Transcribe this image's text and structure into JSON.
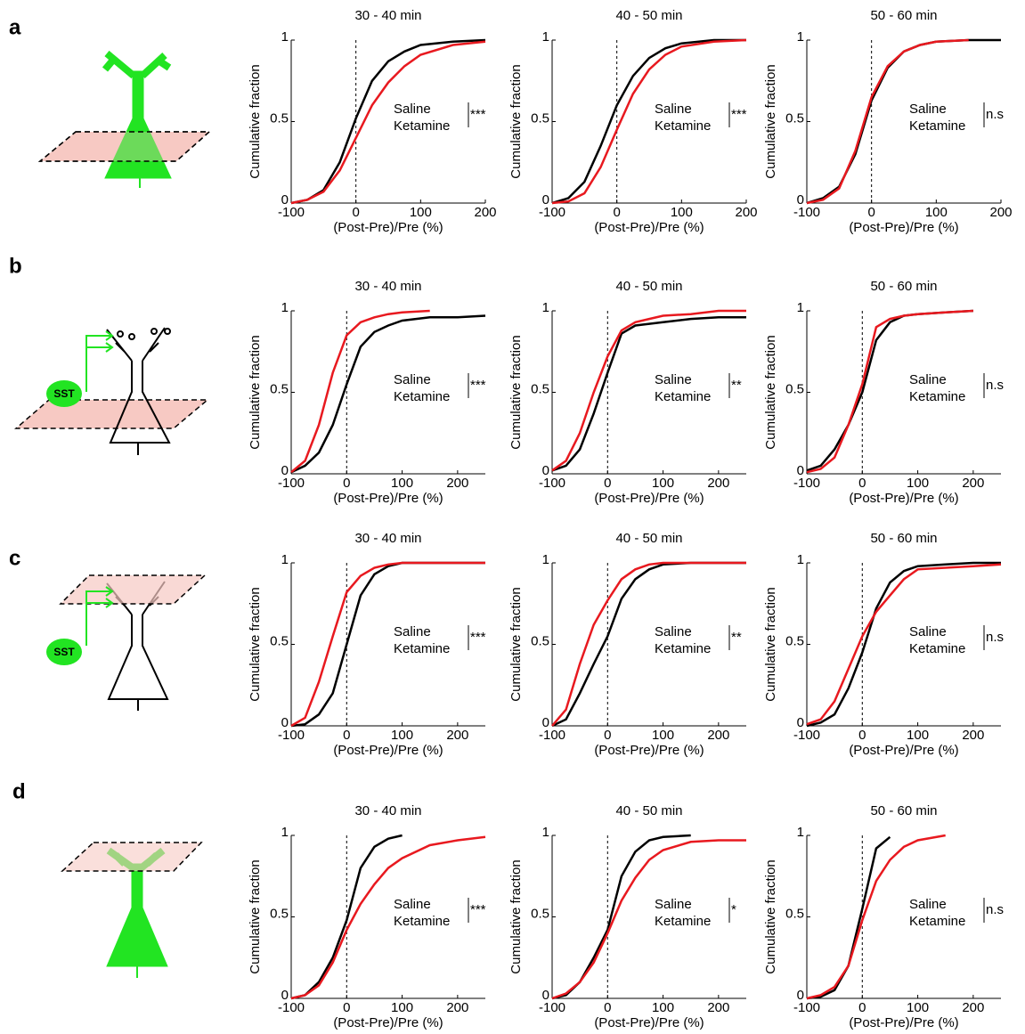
{
  "figure": {
    "panel_labels": [
      "a",
      "b",
      "c",
      "d"
    ],
    "sst_labels": [
      "SST",
      "SST"
    ]
  },
  "chart_data": [
    {
      "type": "line",
      "title": "30 - 40 min",
      "xlabel": "(Post-Pre)/Pre (%)",
      "ylabel": "Cumulative fraction",
      "annotation": "***",
      "vline": 0,
      "x": [
        -100,
        -75,
        -50,
        -25,
        0,
        25,
        50,
        75,
        100,
        150,
        200,
        250
      ],
      "series": [
        {
          "name": "Saline",
          "color": "#000000",
          "values": [
            0,
            0.02,
            0.08,
            0.25,
            0.52,
            0.75,
            0.87,
            0.93,
            0.97,
            0.99,
            1,
            null
          ]
        },
        {
          "name": "Ketamine",
          "color": "#e8191f",
          "values": [
            0,
            0.02,
            0.07,
            0.2,
            0.4,
            0.6,
            0.74,
            0.84,
            0.91,
            0.97,
            0.99,
            null
          ]
        }
      ],
      "xlim": [
        -100,
        200
      ],
      "ylim": [
        0,
        1
      ],
      "xticks": [
        -100,
        0,
        100,
        200
      ],
      "yticks": [
        0,
        0.5,
        1
      ]
    },
    {
      "type": "line",
      "title": "40 - 50 min",
      "xlabel": "(Post-Pre)/Pre (%)",
      "ylabel": "Cumulative fraction",
      "annotation": "***",
      "vline": 0,
      "x": [
        -100,
        -75,
        -50,
        -25,
        0,
        25,
        50,
        75,
        100,
        150,
        200,
        250
      ],
      "series": [
        {
          "name": "Saline",
          "color": "#000000",
          "values": [
            0,
            0.03,
            0.13,
            0.35,
            0.6,
            0.78,
            0.89,
            0.95,
            0.98,
            1,
            1,
            null
          ]
        },
        {
          "name": "Ketamine",
          "color": "#e8191f",
          "values": [
            0,
            0.01,
            0.06,
            0.22,
            0.45,
            0.67,
            0.82,
            0.91,
            0.96,
            0.99,
            1,
            null
          ]
        }
      ],
      "xlim": [
        -100,
        200
      ],
      "ylim": [
        0,
        1
      ],
      "xticks": [
        -100,
        0,
        100,
        200
      ],
      "yticks": [
        0,
        0.5,
        1
      ]
    },
    {
      "type": "line",
      "title": "50 - 60 min",
      "xlabel": "(Post-Pre)/Pre (%)",
      "ylabel": "Cumulative fraction",
      "annotation": "n.s",
      "vline": 0,
      "x": [
        -100,
        -75,
        -50,
        -25,
        0,
        25,
        50,
        75,
        100,
        150,
        200,
        250
      ],
      "series": [
        {
          "name": "Saline",
          "color": "#000000",
          "values": [
            0,
            0.03,
            0.1,
            0.3,
            0.63,
            0.83,
            0.93,
            0.97,
            0.99,
            1,
            1,
            null
          ]
        },
        {
          "name": "Ketamine",
          "color": "#e8191f",
          "values": [
            0,
            0.02,
            0.09,
            0.32,
            0.65,
            0.84,
            0.93,
            0.97,
            0.99,
            1,
            null,
            null
          ]
        }
      ],
      "xlim": [
        -100,
        200
      ],
      "ylim": [
        0,
        1
      ],
      "xticks": [
        -100,
        0,
        100,
        200
      ],
      "yticks": [
        0,
        0.5,
        1
      ]
    },
    {
      "type": "line",
      "title": "30 - 40 min",
      "xlabel": "(Post-Pre)/Pre (%)",
      "ylabel": "Cumulative fraction",
      "annotation": "***",
      "vline": 0,
      "x": [
        -100,
        -75,
        -50,
        -25,
        0,
        25,
        50,
        75,
        100,
        150,
        200,
        250
      ],
      "series": [
        {
          "name": "Saline",
          "color": "#000000",
          "values": [
            0.01,
            0.05,
            0.13,
            0.3,
            0.55,
            0.78,
            0.87,
            0.91,
            0.94,
            0.96,
            0.96,
            0.97
          ]
        },
        {
          "name": "Ketamine",
          "color": "#e8191f",
          "values": [
            0.01,
            0.08,
            0.3,
            0.62,
            0.85,
            0.93,
            0.96,
            0.98,
            0.99,
            1,
            null,
            null
          ]
        }
      ],
      "xlim": [
        -100,
        250
      ],
      "ylim": [
        0,
        1
      ],
      "xticks": [
        -100,
        0,
        100,
        200
      ],
      "yticks": [
        0,
        0.5,
        1
      ]
    },
    {
      "type": "line",
      "title": "40 - 50 min",
      "xlabel": "(Post-Pre)/Pre (%)",
      "ylabel": "Cumulative fraction",
      "annotation": "**",
      "vline": 0,
      "x": [
        -100,
        -75,
        -50,
        -25,
        0,
        25,
        50,
        75,
        100,
        150,
        200,
        250
      ],
      "series": [
        {
          "name": "Saline",
          "color": "#000000",
          "values": [
            0.02,
            0.05,
            0.15,
            0.37,
            0.62,
            0.86,
            0.91,
            0.92,
            0.93,
            0.95,
            0.96,
            0.96
          ]
        },
        {
          "name": "Ketamine",
          "color": "#e8191f",
          "values": [
            0.02,
            0.08,
            0.25,
            0.5,
            0.72,
            0.88,
            0.93,
            0.95,
            0.97,
            0.98,
            1,
            1
          ]
        }
      ],
      "xlim": [
        -100,
        250
      ],
      "ylim": [
        0,
        1
      ],
      "xticks": [
        -100,
        0,
        100,
        200
      ],
      "yticks": [
        0,
        0.5,
        1
      ]
    },
    {
      "type": "line",
      "title": "50 - 60 min",
      "xlabel": "(Post-Pre)/Pre (%)",
      "ylabel": "Cumulative fraction",
      "annotation": "n.s",
      "vline": 0,
      "x": [
        -100,
        -75,
        -50,
        -25,
        0,
        25,
        50,
        75,
        100,
        150,
        200,
        250
      ],
      "series": [
        {
          "name": "Saline",
          "color": "#000000",
          "values": [
            0.02,
            0.05,
            0.15,
            0.3,
            0.5,
            0.82,
            0.93,
            0.97,
            0.98,
            0.99,
            1,
            null
          ]
        },
        {
          "name": "Ketamine",
          "color": "#e8191f",
          "values": [
            0.01,
            0.03,
            0.1,
            0.3,
            0.55,
            0.9,
            0.95,
            0.97,
            0.98,
            0.99,
            1,
            null
          ]
        }
      ],
      "xlim": [
        -100,
        250
      ],
      "ylim": [
        0,
        1
      ],
      "xticks": [
        -100,
        0,
        100,
        200
      ],
      "yticks": [
        0,
        0.5,
        1
      ]
    },
    {
      "type": "line",
      "title": "30 - 40 min",
      "xlabel": "(Post-Pre)/Pre (%)",
      "ylabel": "Cumulative fraction",
      "annotation": "***",
      "vline": 0,
      "x": [
        -100,
        -75,
        -50,
        -25,
        0,
        25,
        50,
        75,
        100,
        150,
        200,
        250
      ],
      "series": [
        {
          "name": "Saline",
          "color": "#000000",
          "values": [
            0,
            0.01,
            0.07,
            0.2,
            0.5,
            0.8,
            0.93,
            0.98,
            1,
            1,
            1,
            1
          ]
        },
        {
          "name": "Ketamine",
          "color": "#e8191f",
          "values": [
            0,
            0.05,
            0.27,
            0.55,
            0.82,
            0.92,
            0.97,
            0.99,
            1,
            1,
            1,
            1
          ]
        }
      ],
      "xlim": [
        -100,
        250
      ],
      "ylim": [
        0,
        1
      ],
      "xticks": [
        -100,
        0,
        100,
        200
      ],
      "yticks": [
        0,
        0.5,
        1
      ]
    },
    {
      "type": "line",
      "title": "40 - 50 min",
      "xlabel": "(Post-Pre)/Pre (%)",
      "ylabel": "Cumulative fraction",
      "annotation": "**",
      "vline": 0,
      "x": [
        -100,
        -75,
        -50,
        -25,
        0,
        25,
        50,
        75,
        100,
        150,
        200,
        250
      ],
      "series": [
        {
          "name": "Saline",
          "color": "#000000",
          "values": [
            0,
            0.04,
            0.2,
            0.38,
            0.55,
            0.78,
            0.9,
            0.96,
            0.99,
            1,
            1,
            1
          ]
        },
        {
          "name": "Ketamine",
          "color": "#e8191f",
          "values": [
            0,
            0.1,
            0.38,
            0.62,
            0.77,
            0.9,
            0.96,
            0.99,
            1,
            1,
            1,
            1
          ]
        }
      ],
      "xlim": [
        -100,
        250
      ],
      "ylim": [
        0,
        1
      ],
      "xticks": [
        -100,
        0,
        100,
        200
      ],
      "yticks": [
        0,
        0.5,
        1
      ]
    },
    {
      "type": "line",
      "title": "50 - 60 min",
      "xlabel": "(Post-Pre)/Pre (%)",
      "ylabel": "Cumulative fraction",
      "annotation": "n.s",
      "vline": 0,
      "x": [
        -100,
        -75,
        -50,
        -25,
        0,
        25,
        50,
        75,
        100,
        150,
        200,
        250
      ],
      "series": [
        {
          "name": "Saline",
          "color": "#000000",
          "values": [
            0,
            0.02,
            0.07,
            0.23,
            0.45,
            0.72,
            0.88,
            0.95,
            0.98,
            0.99,
            1,
            1
          ]
        },
        {
          "name": "Ketamine",
          "color": "#e8191f",
          "values": [
            0.01,
            0.04,
            0.15,
            0.35,
            0.55,
            0.7,
            0.8,
            0.9,
            0.96,
            0.97,
            0.98,
            0.99
          ]
        }
      ],
      "xlim": [
        -100,
        250
      ],
      "ylim": [
        0,
        1
      ],
      "xticks": [
        -100,
        0,
        100,
        200
      ],
      "yticks": [
        0,
        0.5,
        1
      ]
    },
    {
      "type": "line",
      "title": "30 - 40 min",
      "xlabel": "(Post-Pre)/Pre (%)",
      "ylabel": "Cumulative fraction",
      "annotation": "***",
      "vline": 0,
      "x": [
        -100,
        -75,
        -50,
        -25,
        0,
        25,
        50,
        75,
        100,
        150,
        200,
        250
      ],
      "series": [
        {
          "name": "Saline",
          "color": "#000000",
          "values": [
            0,
            0.02,
            0.1,
            0.25,
            0.48,
            0.8,
            0.93,
            0.98,
            1,
            null,
            null,
            null
          ]
        },
        {
          "name": "Ketamine",
          "color": "#e8191f",
          "values": [
            0,
            0.02,
            0.08,
            0.22,
            0.42,
            0.58,
            0.7,
            0.8,
            0.86,
            0.94,
            0.97,
            0.99
          ]
        }
      ],
      "xlim": [
        -100,
        250
      ],
      "ylim": [
        0,
        1
      ],
      "xticks": [
        -100,
        0,
        100,
        200
      ],
      "yticks": [
        0,
        0.5,
        1
      ]
    },
    {
      "type": "line",
      "title": "40 - 50 min",
      "xlabel": "(Post-Pre)/Pre (%)",
      "ylabel": "Cumulative fraction",
      "annotation": "*",
      "vline": 0,
      "x": [
        -100,
        -75,
        -50,
        -25,
        0,
        25,
        50,
        75,
        100,
        150,
        200,
        250
      ],
      "series": [
        {
          "name": "Saline",
          "color": "#000000",
          "values": [
            0,
            0.02,
            0.1,
            0.25,
            0.42,
            0.75,
            0.9,
            0.97,
            0.99,
            1,
            null,
            null
          ]
        },
        {
          "name": "Ketamine",
          "color": "#e8191f",
          "values": [
            0,
            0.03,
            0.1,
            0.22,
            0.4,
            0.6,
            0.74,
            0.85,
            0.91,
            0.96,
            0.97,
            0.97
          ]
        }
      ],
      "xlim": [
        -100,
        250
      ],
      "ylim": [
        0,
        1
      ],
      "xticks": [
        -100,
        0,
        100,
        200
      ],
      "yticks": [
        0,
        0.5,
        1
      ]
    },
    {
      "type": "line",
      "title": "50 - 60 min",
      "xlabel": "(Post-Pre)/Pre (%)",
      "ylabel": "Cumulative fraction",
      "annotation": "n.s",
      "vline": 0,
      "x": [
        -100,
        -75,
        -50,
        -25,
        0,
        25,
        50,
        75,
        100,
        150,
        200,
        250
      ],
      "series": [
        {
          "name": "Saline",
          "color": "#000000",
          "values": [
            0,
            0.01,
            0.05,
            0.2,
            0.55,
            0.92,
            0.99,
            null,
            null,
            null,
            null,
            null
          ]
        },
        {
          "name": "Ketamine",
          "color": "#e8191f",
          "values": [
            0,
            0.02,
            0.07,
            0.2,
            0.48,
            0.72,
            0.85,
            0.93,
            0.97,
            1,
            null,
            null
          ]
        }
      ],
      "xlim": [
        -100,
        250
      ],
      "ylim": [
        0,
        1
      ],
      "xticks": [
        -100,
        0,
        100,
        200
      ],
      "yticks": [
        0,
        0.5,
        1
      ]
    }
  ]
}
